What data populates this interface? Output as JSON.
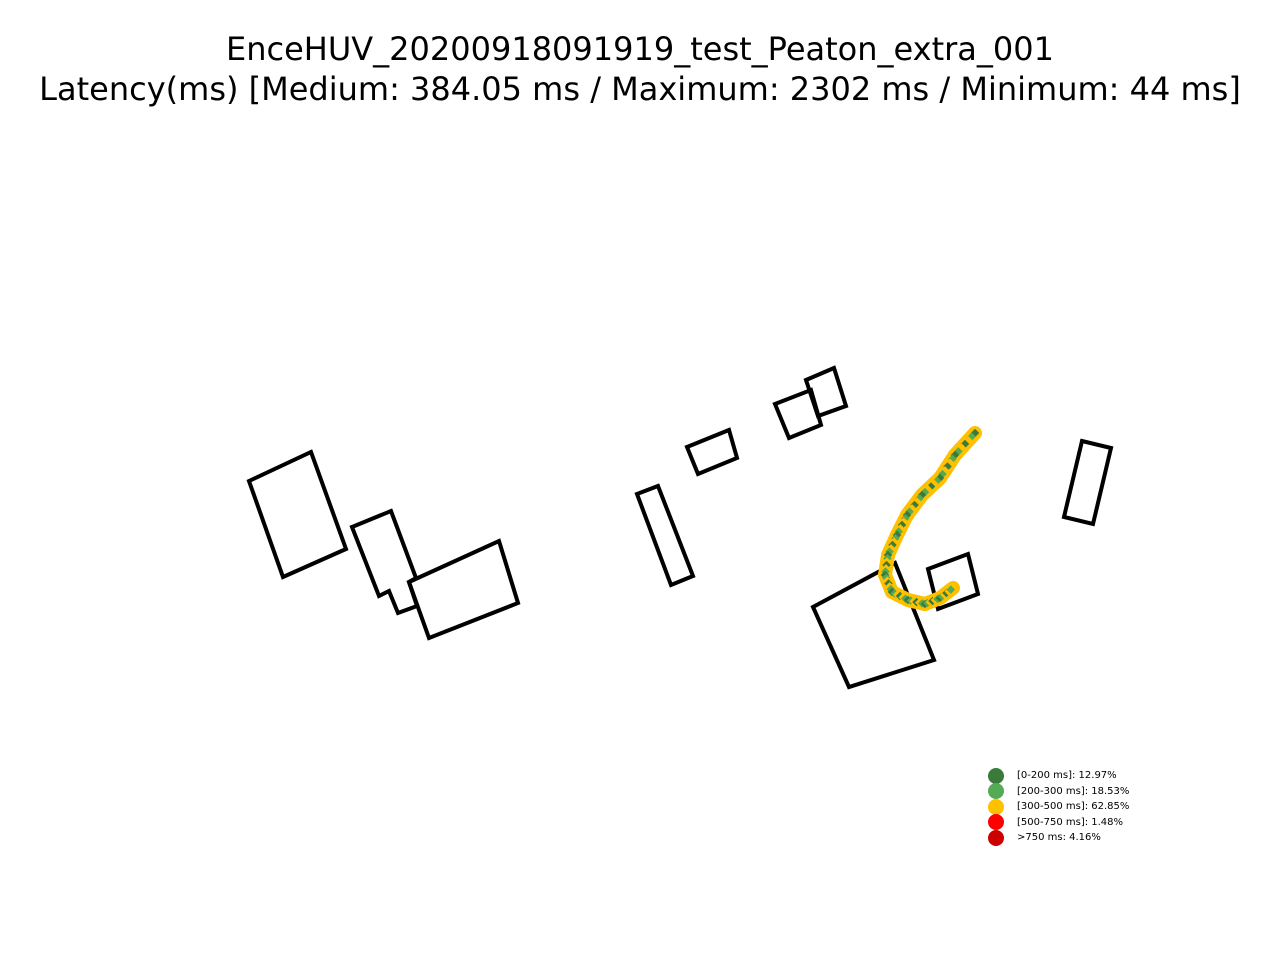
{
  "title": {
    "line1": "EnceHUV_20200918091919_test_Peaton_extra_001",
    "line2": "Latency(ms) [Medium: 384.05 ms / Maximum: 2302 ms / Minimum: 44 ms]"
  },
  "legend": {
    "items": [
      {
        "label": "[0-200 ms]: 12.97%",
        "color": "#3a7a3a"
      },
      {
        "label": "[200-300 ms]: 18.53%",
        "color": "#55aa55"
      },
      {
        "label": "[300-500 ms]: 62.85%",
        "color": "#ffc000"
      },
      {
        "label": "[500-750 ms]: 1.48%",
        "color": "#ff0000"
      },
      {
        "label": ">750 ms: 4.16%",
        "color": "#cc0000"
      }
    ]
  },
  "colors": {
    "building_outline": "#000000",
    "track_primary": "#ffc000",
    "track_secondary": "#55aa55",
    "track_dark": "#3a7a3a"
  }
}
